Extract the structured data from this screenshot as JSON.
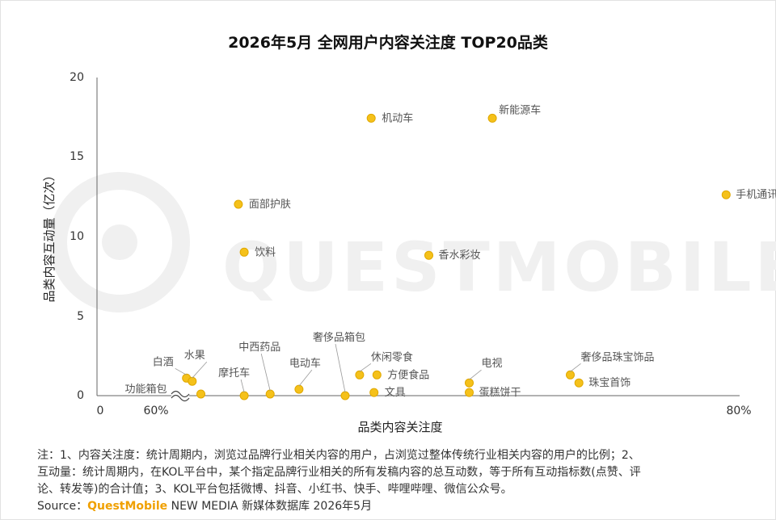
{
  "title": "2026年5月 全网用户内容关注度 TOP20品类",
  "watermark": "QUESTMOBILE",
  "colors": {
    "marker": "#f5c11a",
    "marker_stroke": "#e0a800",
    "axis": "#666666"
  },
  "chart_data": {
    "type": "scatter",
    "xlabel": "品类内容关注度",
    "ylabel": "品类内容互动量（亿次）",
    "xlim": [
      60,
      80
    ],
    "ylim": [
      0,
      20
    ],
    "x_ticks": [
      "0",
      "60%",
      "80%"
    ],
    "y_ticks": [
      "0",
      "5",
      "10",
      "15",
      "20"
    ],
    "axis_break": true,
    "grid": false,
    "points": [
      {
        "label": "机动车",
        "x": 64.8,
        "y": 17.4
      },
      {
        "label": "新能源车",
        "x": 69.0,
        "y": 17.4
      },
      {
        "label": "手机通讯",
        "x": 77.1,
        "y": 12.6
      },
      {
        "label": "面部护肤",
        "x": 60.2,
        "y": 12.0
      },
      {
        "label": "饮料",
        "x": 60.4,
        "y": 9.0
      },
      {
        "label": "香水彩妆",
        "x": 66.8,
        "y": 8.8
      },
      {
        "label": "白酒",
        "x": 58.4,
        "y": 1.1
      },
      {
        "label": "水果",
        "x": 58.6,
        "y": 0.9
      },
      {
        "label": "功能箱包",
        "x": 58.9,
        "y": 0.1
      },
      {
        "label": "摩托车",
        "x": 60.4,
        "y": 0.0
      },
      {
        "label": "中西药品",
        "x": 61.3,
        "y": 0.1
      },
      {
        "label": "电动车",
        "x": 62.3,
        "y": 0.4
      },
      {
        "label": "奢侈品箱包",
        "x": 63.9,
        "y": 0.0
      },
      {
        "label": "休闲零食",
        "x": 64.4,
        "y": 1.3
      },
      {
        "label": "方便食品",
        "x": 65.0,
        "y": 1.3
      },
      {
        "label": "文具",
        "x": 64.9,
        "y": 0.2
      },
      {
        "label": "电视",
        "x": 68.2,
        "y": 0.8
      },
      {
        "label": "蛋糕饼干",
        "x": 68.2,
        "y": 0.2
      },
      {
        "label": "奢侈品珠宝饰品",
        "x": 71.7,
        "y": 1.3
      },
      {
        "label": "珠宝首饰",
        "x": 72.0,
        "y": 0.8
      }
    ]
  },
  "notes": {
    "line1": "注：1、内容关注度：统计周期内，浏览过品牌行业相关内容的用户，占浏览过整体传统行业相关内容的用户的比例；2、",
    "line2": "互动量：统计周期内，在KOL平台中，某个指定品牌行业相关的所有发稿内容的总互动数，等于所有互动指标数(点赞、评",
    "line3": "论、转发等)的合计值；3、KOL平台包括微博、抖音、小红书、快手、哔哩哔哩、微信公众号。",
    "source_prefix": "Source：",
    "source_brand": "QuestMobile",
    "source_suffix": " NEW MEDIA 新媒体数据库 2026年5月"
  }
}
